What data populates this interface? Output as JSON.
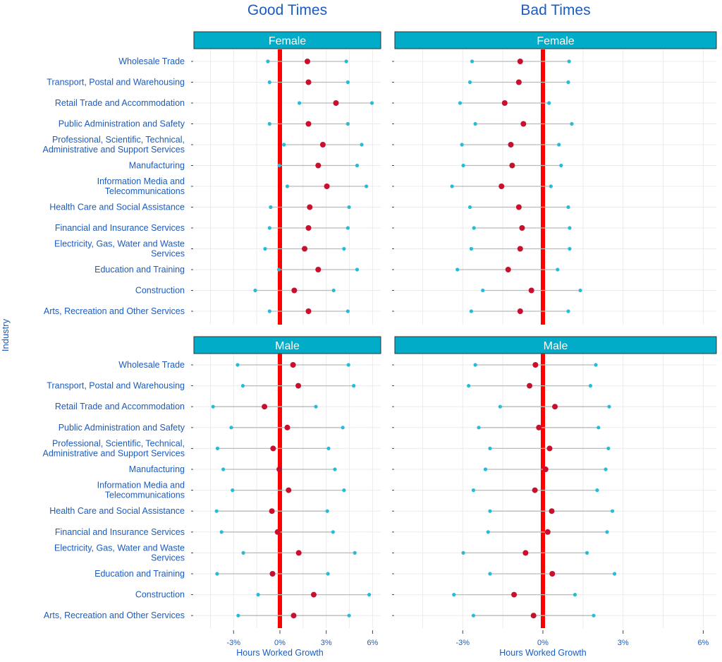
{
  "colors": {
    "text": "#1c5cbf",
    "strip": "#00acc8",
    "mid": "#c8102e",
    "range": "#26bcd7",
    "zero_line": "#ff0000",
    "segment": "#bbbbbb",
    "grid": "#ebebeb"
  },
  "chart_data": {
    "type": "dot-range",
    "ylabel": "Industry",
    "xlabel": "Hours Worked Growth",
    "x_ticks": [
      "-3%",
      "0%",
      "3%",
      "6%"
    ],
    "x_tick_values": [
      -3,
      0,
      3,
      6
    ],
    "reference_line": 0,
    "grid": true,
    "industries": [
      "Wholesale Trade",
      "Transport, Postal and Warehousing",
      "Retail Trade and Accommodation",
      "Public Administration and Safety",
      "Professional, Scientific, Technical, Administrative and Support Services",
      "Manufacturing",
      "Information Media and Telecommunications",
      "Health Care and Social Assistance",
      "Financial and Insurance Services",
      "Electricity, Gas, Water and Waste Services",
      "Education and Training",
      "Construction",
      "Arts, Recreation and Other Services"
    ],
    "columns": [
      {
        "title": "Good Times",
        "xlim": [
          -5.6,
          6.5
        ],
        "panels": [
          {
            "strip": "Female",
            "low": [
              -0.78,
              -0.67,
              1.26,
              -0.67,
              0.26,
              -0.04,
              0.48,
              -0.6,
              -0.67,
              -0.96,
              -0.07,
              -1.6,
              -0.67
            ],
            "mid": [
              1.78,
              1.85,
              3.63,
              1.85,
              2.78,
              2.48,
              3.04,
              1.93,
              1.85,
              1.6,
              2.48,
              0.93,
              1.85
            ],
            "high": [
              4.3,
              4.4,
              5.96,
              4.4,
              5.3,
              5.0,
              5.6,
              4.48,
              4.4,
              4.15,
              5.0,
              3.48,
              4.4
            ]
          },
          {
            "strip": "Male",
            "low": [
              -2.74,
              -2.4,
              -4.33,
              -3.15,
              -4.04,
              -3.67,
              -3.07,
              -4.1,
              -3.78,
              -2.37,
              -4.07,
              -1.41,
              -2.7
            ],
            "mid": [
              0.85,
              1.19,
              -1.0,
              0.48,
              -0.44,
              -0.04,
              0.56,
              -0.52,
              -0.15,
              1.22,
              -0.48,
              2.19,
              0.89
            ],
            "high": [
              4.44,
              4.78,
              2.33,
              4.07,
              3.15,
              3.56,
              4.15,
              3.07,
              3.44,
              4.85,
              3.11,
              5.78,
              4.48
            ]
          }
        ]
      },
      {
        "title": "Bad Times",
        "xlim": [
          -5.6,
          6.5
        ],
        "panels": [
          {
            "strip": "Female",
            "low": [
              -2.65,
              -2.73,
              -3.1,
              -2.53,
              -3.03,
              -2.98,
              -3.4,
              -2.73,
              -2.58,
              -2.68,
              -3.2,
              -2.25,
              -2.68
            ],
            "mid": [
              -0.85,
              -0.9,
              -1.43,
              -0.73,
              -1.2,
              -1.15,
              -1.55,
              -0.9,
              -0.78,
              -0.85,
              -1.3,
              -0.43,
              -0.85
            ],
            "high": [
              0.98,
              0.95,
              0.23,
              1.08,
              0.6,
              0.68,
              0.3,
              0.95,
              1.0,
              1.0,
              0.55,
              1.4,
              0.95
            ]
          },
          {
            "strip": "Male",
            "low": [
              -2.53,
              -2.78,
              -1.6,
              -2.4,
              -1.98,
              -2.15,
              -2.6,
              -1.98,
              -2.05,
              -2.98,
              -1.98,
              -3.33,
              -2.6
            ],
            "mid": [
              -0.28,
              -0.5,
              0.45,
              -0.15,
              0.25,
              0.1,
              -0.3,
              0.33,
              0.18,
              -0.65,
              0.35,
              -1.08,
              -0.35
            ],
            "high": [
              1.98,
              1.78,
              2.48,
              2.08,
              2.45,
              2.35,
              2.03,
              2.6,
              2.4,
              1.65,
              2.68,
              1.2,
              1.9
            ]
          }
        ]
      }
    ]
  }
}
